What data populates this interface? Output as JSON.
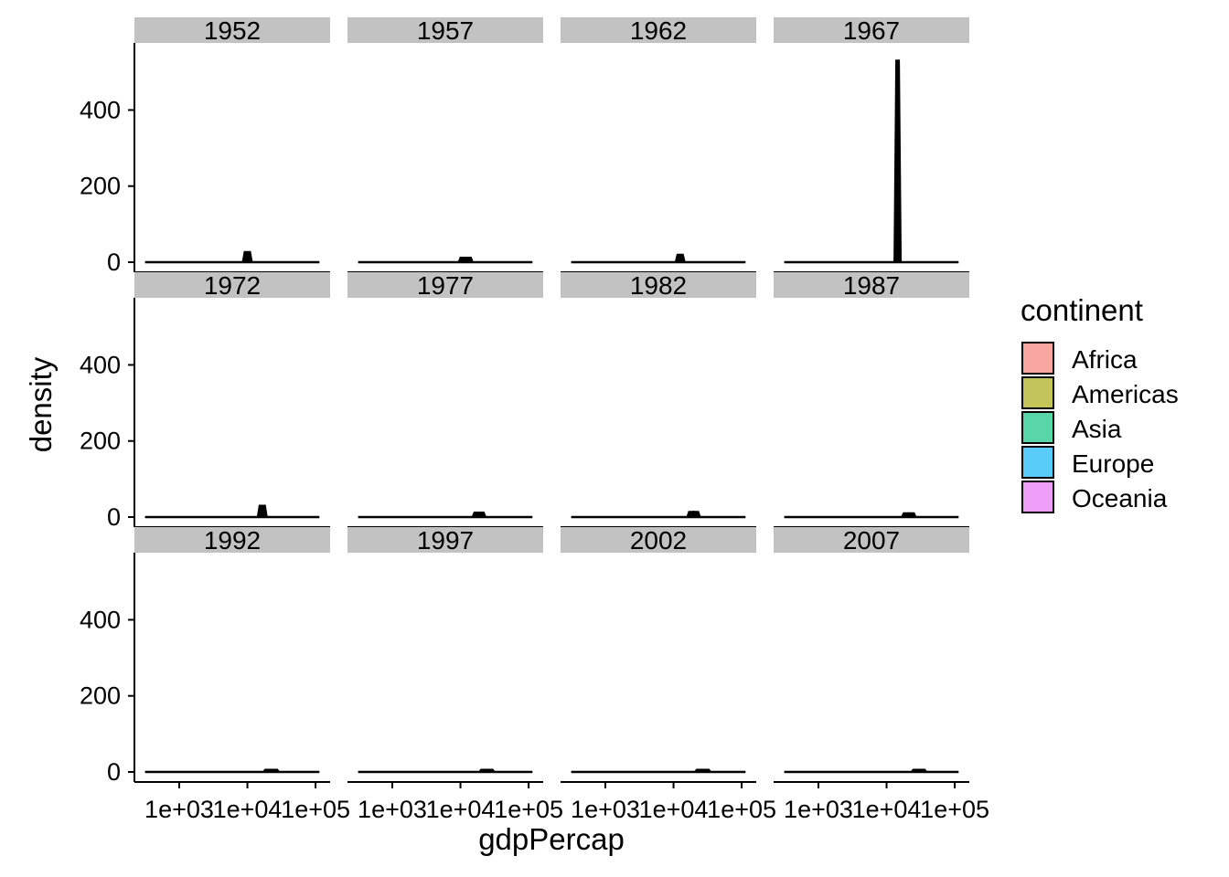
{
  "chart_data": {
    "type": "area",
    "facet_by": "year",
    "xlabel": "gdpPercap",
    "ylabel": "density",
    "x_scale": "log10",
    "x_breaks": [
      1000,
      10000,
      100000
    ],
    "x_tick_labels": [
      "1e+03",
      "1e+04",
      "1e+05"
    ],
    "xlim": [
      300,
      120000
    ],
    "ylim": [
      0,
      550
    ],
    "y_breaks": [
      0,
      200,
      400
    ],
    "y_tick_labels": [
      "0",
      "200",
      "400"
    ],
    "grid": false,
    "legend_position": "right",
    "legend": {
      "title": "continent",
      "items": [
        {
          "label": "Africa",
          "color": "#F8766D"
        },
        {
          "label": "Americas",
          "color": "#A3A500"
        },
        {
          "label": "Asia",
          "color": "#00BF7D"
        },
        {
          "label": "Europe",
          "color": "#00B0F6"
        },
        {
          "label": "Oceania",
          "color": "#E76BF3"
        }
      ]
    },
    "panels": [
      {
        "label": "1952",
        "peaks": [
          {
            "x": 10000,
            "y": 27
          }
        ]
      },
      {
        "label": "1957",
        "peaks": [
          {
            "x": 11000,
            "y": 12
          },
          {
            "x": 13000,
            "y": 12
          }
        ]
      },
      {
        "label": "1962",
        "peaks": [
          {
            "x": 12500,
            "y": 20
          }
        ]
      },
      {
        "label": "1967",
        "peaks": [
          {
            "x": 14500,
            "y": 530
          }
        ]
      },
      {
        "label": "1972",
        "peaks": [
          {
            "x": 16500,
            "y": 30
          }
        ]
      },
      {
        "label": "1977",
        "peaks": [
          {
            "x": 17500,
            "y": 12
          },
          {
            "x": 20000,
            "y": 12
          }
        ]
      },
      {
        "label": "1982",
        "peaks": [
          {
            "x": 18500,
            "y": 14
          },
          {
            "x": 21000,
            "y": 14
          }
        ]
      },
      {
        "label": "1987",
        "peaks": [
          {
            "x": 19500,
            "y": 10
          },
          {
            "x": 23000,
            "y": 10
          }
        ]
      },
      {
        "label": "1992",
        "peaks": [
          {
            "x": 20000,
            "y": 6
          },
          {
            "x": 25000,
            "y": 6
          }
        ]
      },
      {
        "label": "1997",
        "peaks": [
          {
            "x": 22000,
            "y": 6
          },
          {
            "x": 27000,
            "y": 6
          }
        ]
      },
      {
        "label": "2002",
        "peaks": [
          {
            "x": 24000,
            "y": 6
          },
          {
            "x": 30000,
            "y": 6
          }
        ]
      },
      {
        "label": "2007",
        "peaks": [
          {
            "x": 27000,
            "y": 6
          },
          {
            "x": 33000,
            "y": 6
          }
        ]
      }
    ]
  }
}
